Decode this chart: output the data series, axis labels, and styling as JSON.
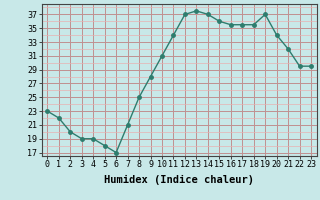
{
  "x": [
    0,
    1,
    2,
    3,
    4,
    5,
    6,
    7,
    8,
    9,
    10,
    11,
    12,
    13,
    14,
    15,
    16,
    17,
    18,
    19,
    20,
    21,
    22,
    23
  ],
  "y": [
    23,
    22,
    20,
    19,
    19,
    18,
    17,
    21,
    25,
    28,
    31,
    34,
    37,
    37.5,
    37,
    36,
    35.5,
    35.5,
    35.5,
    37,
    34,
    32,
    29.5,
    29.5
  ],
  "line_color": "#2e7d6e",
  "marker_size": 2.5,
  "bg_color": "#c8e8e8",
  "minor_grid_color": "#e8b0b0",
  "major_grid_color": "#c09090",
  "xlabel": "Humidex (Indice chaleur)",
  "xlim": [
    -0.5,
    23.5
  ],
  "ylim": [
    16.5,
    38.5
  ],
  "yticks": [
    17,
    19,
    21,
    23,
    25,
    27,
    29,
    31,
    33,
    35,
    37
  ],
  "xticks": [
    0,
    1,
    2,
    3,
    4,
    5,
    6,
    7,
    8,
    9,
    10,
    11,
    12,
    13,
    14,
    15,
    16,
    17,
    18,
    19,
    20,
    21,
    22,
    23
  ],
  "xlabel_fontsize": 7.5,
  "tick_fontsize": 6,
  "line_width": 1.0
}
